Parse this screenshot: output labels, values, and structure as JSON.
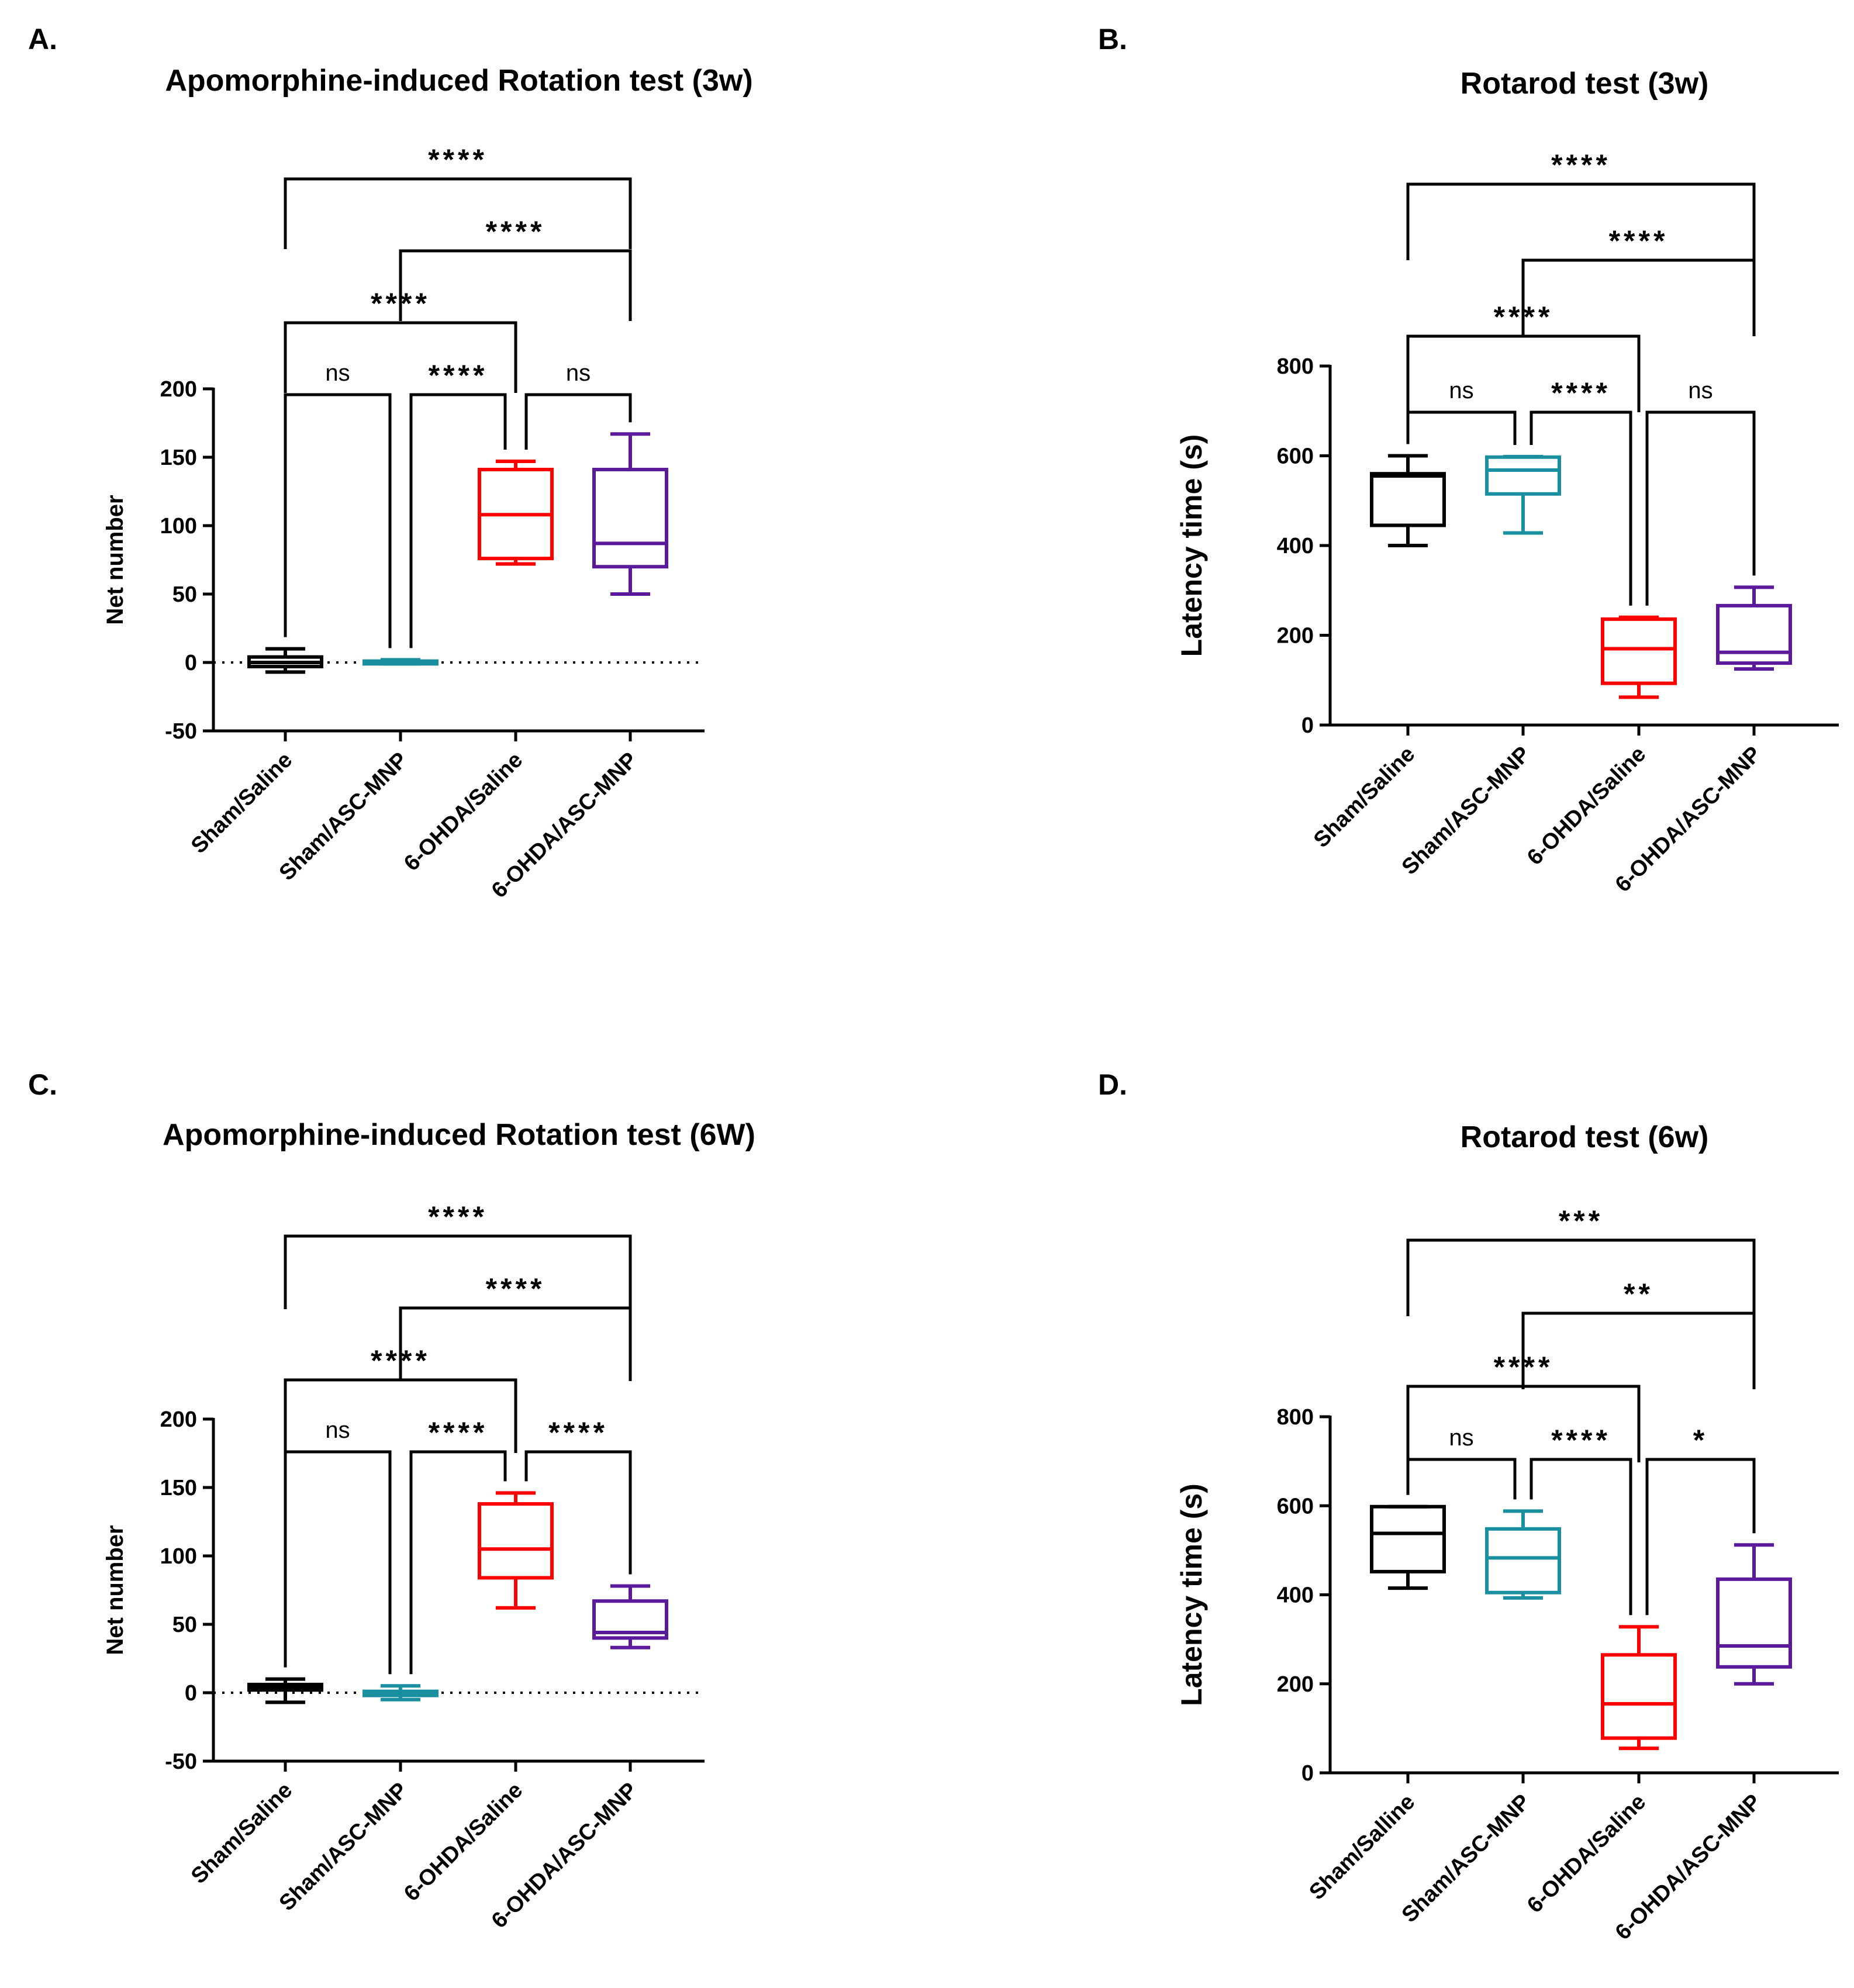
{
  "figure": {
    "panels": [
      "A.",
      "B.",
      "C.",
      "D."
    ]
  },
  "chart_data": [
    {
      "panel": "A.",
      "type": "box",
      "title": "Apomorphine-induced Rotation test (3w)",
      "xlabel": "",
      "ylabel": "Net number",
      "ylim": [
        -50,
        200
      ],
      "yticks": [
        200,
        150,
        100,
        50,
        0,
        -50
      ],
      "zero_line": "dotted",
      "categories": [
        "Sham/Saline",
        "Sham/ASC-MNP",
        "6-OHDA/Saline",
        "6-OHDA/ASC-MNP"
      ],
      "colors": [
        "#000000",
        "#1a8fa0",
        "#ff0000",
        "#5b1a9b"
      ],
      "boxes": [
        {
          "min": -7,
          "q1": -3,
          "median": 0,
          "q3": 4,
          "max": 10
        },
        {
          "min": -1,
          "q1": -1,
          "median": 0,
          "q3": 1,
          "max": 2
        },
        {
          "min": 72,
          "q1": 76,
          "median": 108,
          "q3": 141,
          "max": 147
        },
        {
          "min": 50,
          "q1": 70,
          "median": 87,
          "q3": 141,
          "max": 167
        }
      ],
      "comparisons": [
        {
          "from": 0,
          "to": 1,
          "label": "ns",
          "level": 1
        },
        {
          "from": 1,
          "to": 2,
          "label": "****",
          "level": 1
        },
        {
          "from": 2,
          "to": 3,
          "label": "ns",
          "level": 1
        },
        {
          "from": 0,
          "to": 2,
          "label": "****",
          "level": 2
        },
        {
          "from": 1,
          "to": 3,
          "label": "****",
          "level": 3
        },
        {
          "from": 0,
          "to": 3,
          "label": "****",
          "level": 4
        }
      ]
    },
    {
      "panel": "B.",
      "type": "box",
      "title": "Rotarod test (3w)",
      "xlabel": "",
      "ylabel": "Latency time (s)",
      "ylim": [
        0,
        800
      ],
      "yticks": [
        800,
        600,
        400,
        200,
        0
      ],
      "zero_line": "none",
      "categories": [
        "Sham/Saline",
        "Sham/ASC-MNP",
        "6-OHDA/Saline",
        "6-OHDA/ASC-MNP"
      ],
      "colors": [
        "#000000",
        "#1a8fa0",
        "#ff0000",
        "#5b1a9b"
      ],
      "boxes": [
        {
          "min": 400,
          "q1": 445,
          "median": 555,
          "q3": 560,
          "max": 600
        },
        {
          "min": 428,
          "q1": 515,
          "median": 568,
          "q3": 597,
          "max": 598
        },
        {
          "min": 62,
          "q1": 93,
          "median": 170,
          "q3": 236,
          "max": 240
        },
        {
          "min": 125,
          "q1": 138,
          "median": 162,
          "q3": 266,
          "max": 307
        }
      ],
      "comparisons": [
        {
          "from": 0,
          "to": 1,
          "label": "ns",
          "level": 1
        },
        {
          "from": 1,
          "to": 2,
          "label": "****",
          "level": 1
        },
        {
          "from": 2,
          "to": 3,
          "label": "ns",
          "level": 1
        },
        {
          "from": 0,
          "to": 2,
          "label": "****",
          "level": 2
        },
        {
          "from": 1,
          "to": 3,
          "label": "****",
          "level": 3
        },
        {
          "from": 0,
          "to": 3,
          "label": "****",
          "level": 4
        }
      ]
    },
    {
      "panel": "C.",
      "type": "box",
      "title": "Apomorphine-induced Rotation test (6W)",
      "xlabel": "",
      "ylabel": "Net number",
      "ylim": [
        -50,
        200
      ],
      "yticks": [
        200,
        150,
        100,
        50,
        0,
        -50
      ],
      "zero_line": "dotted",
      "categories": [
        "Sham/Saline",
        "Sham/ASC-MNP",
        "6-OHDA/Saline",
        "6-OHDA/ASC-MNP"
      ],
      "colors": [
        "#000000",
        "#1a8fa0",
        "#ff0000",
        "#5b1a9b"
      ],
      "boxes": [
        {
          "min": -7,
          "q1": 2,
          "median": 4,
          "q3": 6,
          "max": 10
        },
        {
          "min": -5,
          "q1": -2,
          "median": 0,
          "q3": 1,
          "max": 5
        },
        {
          "min": 62,
          "q1": 84,
          "median": 105,
          "q3": 138,
          "max": 146
        },
        {
          "min": 33,
          "q1": 40,
          "median": 44,
          "q3": 67,
          "max": 78
        }
      ],
      "comparisons": [
        {
          "from": 0,
          "to": 1,
          "label": "ns",
          "level": 1
        },
        {
          "from": 1,
          "to": 2,
          "label": "****",
          "level": 1
        },
        {
          "from": 2,
          "to": 3,
          "label": "****",
          "level": 1
        },
        {
          "from": 0,
          "to": 2,
          "label": "****",
          "level": 2
        },
        {
          "from": 1,
          "to": 3,
          "label": "****",
          "level": 3
        },
        {
          "from": 0,
          "to": 3,
          "label": "****",
          "level": 4
        }
      ]
    },
    {
      "panel": "D.",
      "type": "box",
      "title": "Rotarod test (6w)",
      "xlabel": "",
      "ylabel": "Latency time (s)",
      "ylim": [
        0,
        800
      ],
      "yticks": [
        800,
        600,
        400,
        200,
        0
      ],
      "zero_line": "none",
      "categories": [
        "Sham/Salline",
        "Sham/ASC-MNP",
        "6-OHDA/Saline",
        "6-OHDA/ASC-MNP"
      ],
      "colors": [
        "#000000",
        "#1a8fa0",
        "#ff0000",
        "#5b1a9b"
      ],
      "boxes": [
        {
          "min": 415,
          "q1": 452,
          "median": 538,
          "q3": 598,
          "max": 598
        },
        {
          "min": 393,
          "q1": 405,
          "median": 483,
          "q3": 548,
          "max": 588
        },
        {
          "min": 55,
          "q1": 78,
          "median": 155,
          "q3": 265,
          "max": 328
        },
        {
          "min": 200,
          "q1": 238,
          "median": 285,
          "q3": 435,
          "max": 512
        }
      ],
      "comparisons": [
        {
          "from": 0,
          "to": 1,
          "label": "ns",
          "level": 1
        },
        {
          "from": 1,
          "to": 2,
          "label": "****",
          "level": 1
        },
        {
          "from": 2,
          "to": 3,
          "label": "*",
          "level": 1
        },
        {
          "from": 0,
          "to": 2,
          "label": "****",
          "level": 2
        },
        {
          "from": 1,
          "to": 3,
          "label": "**",
          "level": 3
        },
        {
          "from": 0,
          "to": 3,
          "label": "***",
          "level": 4
        }
      ]
    }
  ]
}
